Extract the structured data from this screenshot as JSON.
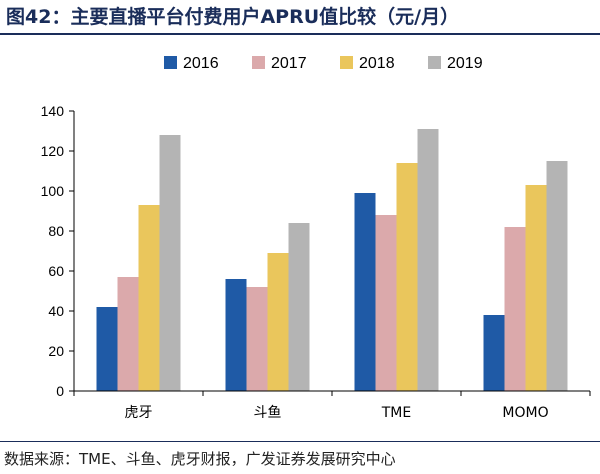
{
  "figure": {
    "title": "图42：主要直播平台付费用户APRU值比较（元/月）",
    "source": "数据来源：TME、斗鱼、虎牙财报，广发证券发展研究中心"
  },
  "chart_data": {
    "type": "bar",
    "categories": [
      "虎牙",
      "斗鱼",
      "TME",
      "MOMO"
    ],
    "series": [
      {
        "name": "2016",
        "color": "#1f5aa6",
        "values": [
          42,
          56,
          99,
          38
        ]
      },
      {
        "name": "2017",
        "color": "#dba9ab",
        "values": [
          57,
          52,
          88,
          82
        ]
      },
      {
        "name": "2018",
        "color": "#eac65c",
        "values": [
          93,
          69,
          114,
          103
        ]
      },
      {
        "name": "2019",
        "color": "#b4b4b4",
        "values": [
          128,
          84,
          131,
          115
        ]
      }
    ],
    "ylim": [
      0,
      140
    ],
    "yticks": [
      0,
      20,
      40,
      60,
      80,
      100,
      120,
      140
    ],
    "legend": "top",
    "grid": false
  }
}
